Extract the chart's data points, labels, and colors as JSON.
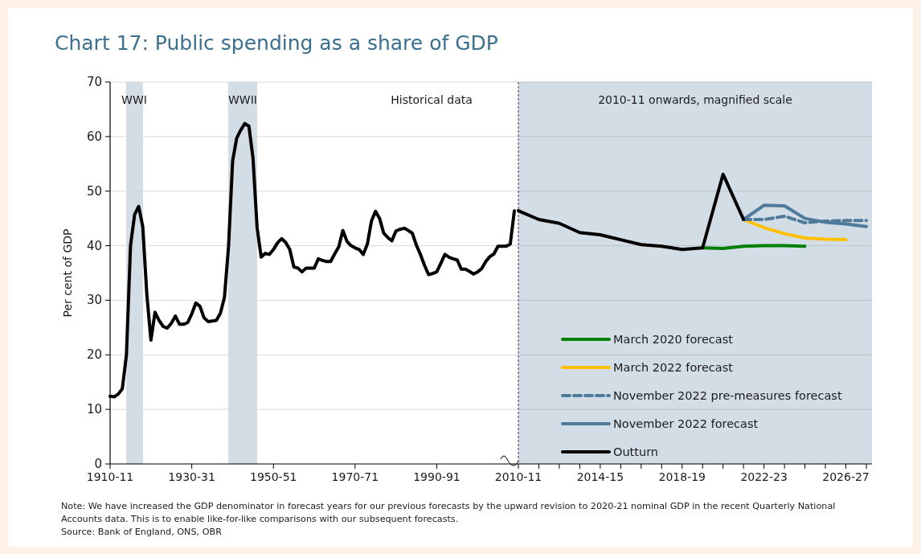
{
  "chart_data": [
    {
      "type": "line",
      "title": "Chart 17: Public spending as a share of GDP",
      "ylabel": "Per cent of GDP",
      "categories": [
        "1910-11",
        null,
        null,
        null,
        null,
        null,
        null,
        null,
        null,
        null,
        null,
        null,
        null,
        null,
        null,
        null,
        null,
        null,
        null,
        null,
        "1930-31",
        null,
        null,
        null,
        null,
        null,
        null,
        null,
        null,
        null,
        null,
        null,
        null,
        null,
        null,
        null,
        null,
        null,
        null,
        null,
        "1950-51",
        null,
        null,
        null,
        null,
        null,
        null,
        null,
        null,
        null,
        null,
        null,
        null,
        null,
        null,
        null,
        null,
        null,
        null,
        null,
        "1970-71",
        null,
        null,
        null,
        null,
        null,
        null,
        null,
        null,
        null,
        null,
        null,
        null,
        null,
        null,
        null,
        null,
        null,
        null,
        null,
        "1990-91",
        null,
        null,
        null,
        null,
        null,
        null,
        null,
        null,
        null,
        null,
        null,
        null,
        null,
        null,
        null,
        null,
        null,
        null,
        null
      ],
      "ylim": [
        0,
        70
      ],
      "yticks": [
        0,
        10,
        20,
        30,
        40,
        50,
        60,
        70
      ],
      "grid": "y",
      "annotations": [
        "WWI",
        "WWII",
        "Historical data",
        "Note: We have increased the GDP denominator in forecast years for our previous forecasts by the upward revision to 2020-21 nominal GDP in the recent Quarterly National Accounts data. This is to enable like-for-like comparisons with our subsequent forecasts.",
        "Source: Bank of England, ONS, OBR"
      ],
      "series": [
        {
          "color": "#000000",
          "values": [
            12.4,
            12.3,
            12.8,
            13.8,
            20,
            40,
            45.7,
            47.2,
            43.5,
            31,
            22.7,
            27.8,
            26.3,
            25.2,
            24.9,
            25.8,
            27.1,
            25.6,
            25.6,
            25.9,
            27.5,
            29.5,
            28.9,
            26.8,
            26.1,
            26.2,
            26.3,
            27.6,
            30.5,
            39.8,
            55.5,
            59.7,
            61.2,
            62.4,
            61.9,
            56,
            43.3,
            37.9,
            38.6,
            38.4,
            39.3,
            40.5,
            41.3,
            40.6,
            39.3,
            36.1,
            35.9,
            35.2,
            35.9,
            35.9,
            35.9,
            37.6,
            37.3,
            37.1,
            37.1,
            38.5,
            39.8,
            42.8,
            40.8,
            40,
            39.6,
            39.3,
            38.4,
            40.3,
            44.5,
            46.3,
            45,
            42.3,
            41.5,
            40.9,
            42.7,
            43,
            43.2,
            42.8,
            42.3,
            40.1,
            38.4,
            36.4,
            34.7,
            34.9,
            35.2,
            36.8,
            38.4,
            37.9,
            37.6,
            37.4,
            35.7,
            35.7,
            35.3,
            34.8,
            35.2,
            35.8,
            37.1,
            38.0,
            38.5,
            39.9,
            39.9,
            39.9,
            40.3,
            46.4
          ]
        }
      ]
    },
    {
      "type": "line",
      "tick_labels": "x",
      "categories": [
        "2010-11",
        null,
        null,
        null,
        "2014-15",
        null,
        null,
        null,
        "2018-19",
        null,
        null,
        null,
        "2022-23",
        null,
        null,
        null,
        "2026-27",
        null
      ],
      "ylim": [
        0,
        70
      ],
      "yticks": [
        0,
        10,
        20,
        30,
        40,
        50,
        60,
        70
      ],
      "grid": "y",
      "legend": "bottom right",
      "annotations": [
        "2010-11 onwards, magnified scale"
      ],
      "series": [
        {
          "name": "March 2020 forecast",
          "color": "#008000",
          "values": [
            null,
            null,
            null,
            null,
            null,
            null,
            null,
            null,
            null,
            39.6,
            39.5,
            39.9,
            40.0,
            40.0,
            39.9,
            null,
            null,
            null
          ]
        },
        {
          "name": "March 2022 forecast",
          "color": "#ffc000",
          "values": [
            null,
            null,
            null,
            null,
            null,
            null,
            null,
            null,
            null,
            null,
            null,
            44.8,
            43.3,
            42.2,
            41.4,
            41.2,
            41.1,
            null
          ]
        },
        {
          "name": "November 2022 pre-measures forecast",
          "color": "#4f7a9a",
          "line_style": "dashed",
          "values": [
            null,
            null,
            null,
            null,
            null,
            null,
            null,
            null,
            null,
            null,
            null,
            44.8,
            44.8,
            45.4,
            44.2,
            44.5,
            44.6,
            44.6
          ]
        },
        {
          "name": "November 2022 forecast",
          "color": "#4f7a9a",
          "values": [
            null,
            null,
            null,
            null,
            null,
            null,
            null,
            null,
            null,
            null,
            null,
            44.8,
            47.4,
            47.3,
            45.0,
            44.3,
            44.0,
            43.5
          ]
        },
        {
          "name": "Outturn",
          "color": "#000000",
          "values": [
            46.4,
            44.8,
            44.1,
            42.4,
            42.0,
            41.1,
            40.2,
            39.9,
            39.3,
            39.6,
            53.1,
            44.8,
            null,
            null,
            null,
            null,
            null,
            null
          ]
        }
      ]
    }
  ]
}
